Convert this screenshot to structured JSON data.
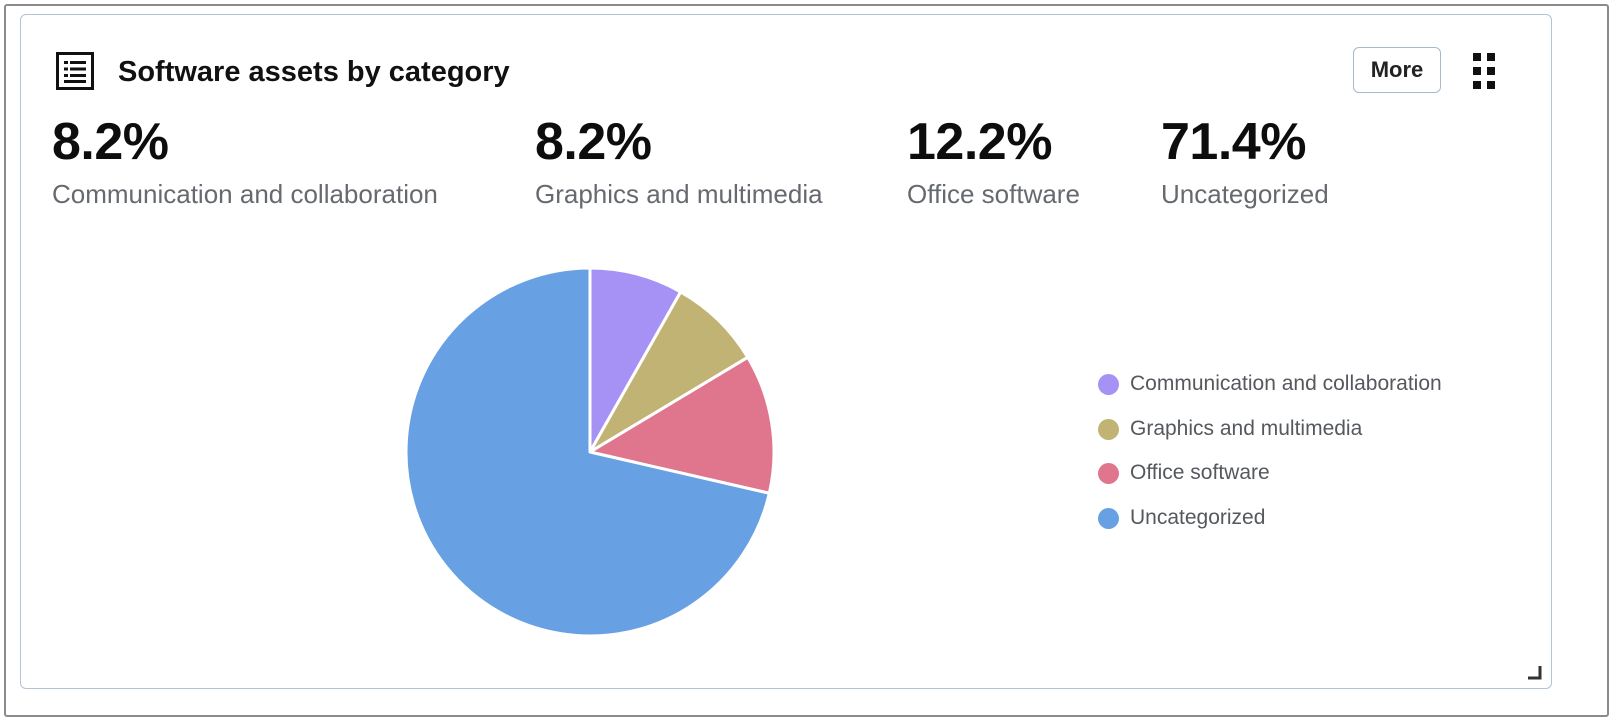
{
  "card": {
    "title": "Software assets by category",
    "more_label": "More",
    "header_icon": "list-icon",
    "drag_icon": "drag-handle-icon",
    "resize_icon": "resize-corner-icon"
  },
  "stats": [
    {
      "value": "8.2%",
      "label": "Communication and collaboration"
    },
    {
      "value": "8.2%",
      "label": "Graphics and multimedia"
    },
    {
      "value": "12.2%",
      "label": "Office software"
    },
    {
      "value": "71.4%",
      "label": "Uncategorized"
    }
  ],
  "chart_data": {
    "type": "pie",
    "categories": [
      "Communication and collaboration",
      "Graphics and multimedia",
      "Office software",
      "Uncategorized"
    ],
    "values": [
      8.2,
      8.2,
      12.2,
      71.4
    ],
    "colors": [
      "#a592f4",
      "#c1b373",
      "#df768d",
      "#68a0e4"
    ],
    "legend_position": "right"
  },
  "legend": [
    {
      "label": "Communication and collaboration",
      "color": "#a592f4"
    },
    {
      "label": "Graphics and multimedia",
      "color": "#c1b373"
    },
    {
      "label": "Office software",
      "color": "#df768d"
    },
    {
      "label": "Uncategorized",
      "color": "#68a0e4"
    }
  ]
}
